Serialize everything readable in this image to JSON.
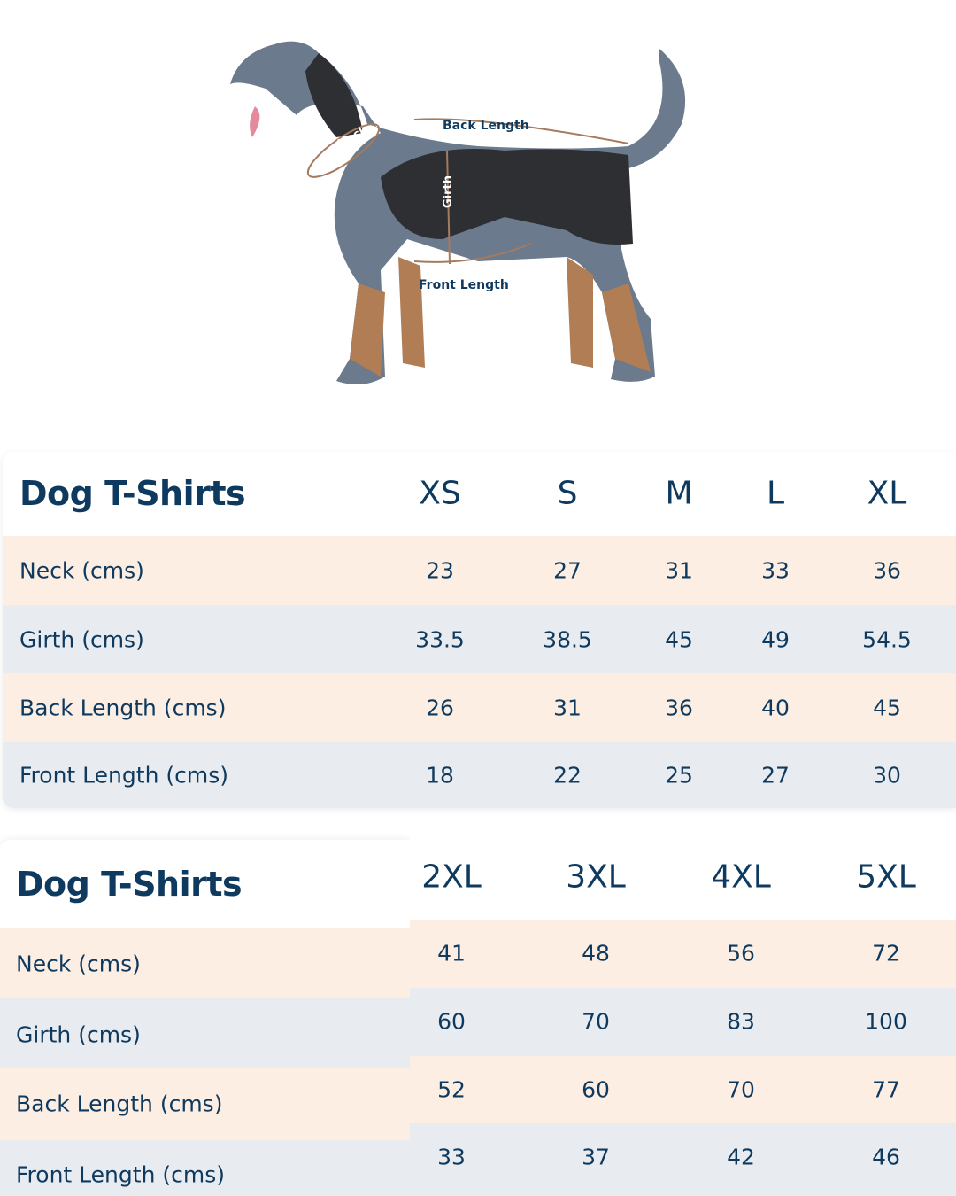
{
  "illustration": {
    "labels": {
      "neck": "Neck",
      "back_length": "Back Length",
      "girth": "Girth",
      "front_length": "Front Length"
    }
  },
  "colors": {
    "text": "#0f3a5f",
    "row_peach": "#fdeee3",
    "row_gray": "#e8ecf0"
  },
  "table1": {
    "title": "Dog T-Shirts",
    "sizes": [
      "XS",
      "S",
      "M",
      "L",
      "XL"
    ],
    "rows": [
      {
        "label": "Neck (cms)",
        "values": [
          "23",
          "27",
          "31",
          "33",
          "36"
        ]
      },
      {
        "label": "Girth (cms)",
        "values": [
          "33.5",
          "38.5",
          "45",
          "49",
          "54.5"
        ]
      },
      {
        "label": "Back Length (cms)",
        "values": [
          "26",
          "31",
          "36",
          "40",
          "45"
        ]
      },
      {
        "label": "Front Length (cms)",
        "values": [
          "18",
          "22",
          "25",
          "27",
          "30"
        ]
      }
    ]
  },
  "table2": {
    "title": "Dog T-Shirts",
    "sizes": [
      "2XL",
      "3XL",
      "4XL",
      "5XL"
    ],
    "rows": [
      {
        "label": "Neck (cms)",
        "values": [
          "41",
          "48",
          "56",
          "72"
        ]
      },
      {
        "label": "Girth (cms)",
        "values": [
          "60",
          "70",
          "83",
          "100"
        ]
      },
      {
        "label": "Back Length (cms)",
        "values": [
          "52",
          "60",
          "70",
          "77"
        ]
      },
      {
        "label": "Front Length (cms)",
        "values": [
          "33",
          "37",
          "42",
          "46"
        ]
      }
    ]
  }
}
